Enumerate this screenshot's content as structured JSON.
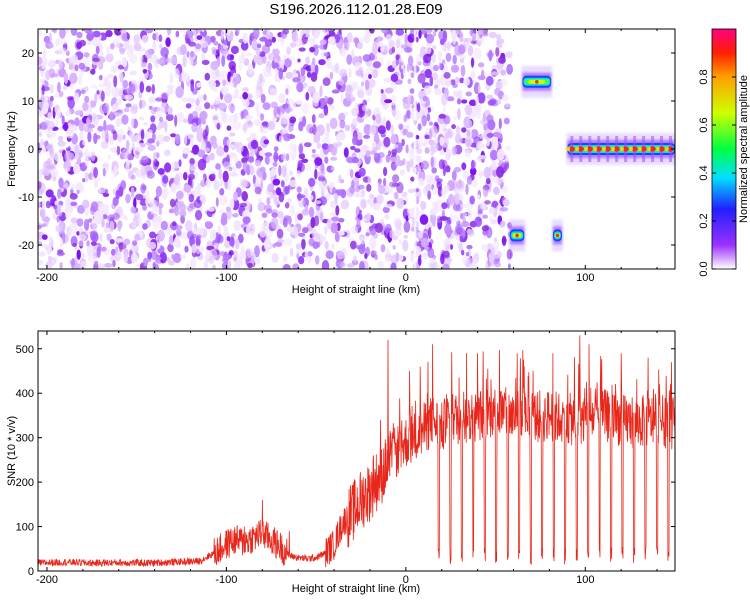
{
  "title": "S196.2026.112.01.28.E09",
  "chart_data": [
    {
      "type": "heatmap",
      "xlabel": "Height of straight line (km)",
      "ylabel": "Frequency (Hz)",
      "xlim": [
        -205,
        150
      ],
      "ylim": [
        -25,
        25
      ],
      "xticks": [
        -200,
        -100,
        0,
        100
      ],
      "xtick_labels": [
        "-200",
        "-100",
        "0",
        "100"
      ],
      "yticks": [
        -20,
        -10,
        0,
        10,
        20
      ],
      "ytick_labels": [
        "-20",
        "-10",
        "0",
        "10",
        "20"
      ],
      "noise_region": {
        "x_range": [
          -205,
          58
        ],
        "y_range": [
          -25,
          25
        ],
        "description": "broadband noise, low normalized amplitude"
      },
      "features": [
        {
          "x_range": [
            58,
            66
          ],
          "y": -18,
          "amplitude": 0.5
        },
        {
          "x_range": [
            65,
            81
          ],
          "y": 14,
          "amplitude": 0.5
        },
        {
          "x_range": [
            82,
            87
          ],
          "y": -18,
          "amplitude": 0.5
        },
        {
          "x_range": [
            90,
            150
          ],
          "y": 0,
          "amplitude": 0.95
        }
      ],
      "colorbar": {
        "label": "Normalized spectral amplitude",
        "range": [
          0,
          1
        ],
        "ticks": [
          0.0,
          0.2,
          0.4,
          0.6,
          0.8
        ],
        "tick_labels": [
          "0.0",
          "0.2",
          "0.4",
          "0.6",
          "0.8"
        ]
      }
    },
    {
      "type": "line",
      "xlabel": "Height of straight line (km)",
      "ylabel": "SNR (10 * v/v)",
      "xlim": [
        -205,
        150
      ],
      "ylim": [
        0,
        540
      ],
      "xticks": [
        -200,
        -100,
        0,
        100
      ],
      "xtick_labels": [
        "-200",
        "-100",
        "0",
        "100"
      ],
      "yticks": [
        0,
        100,
        200,
        300,
        400,
        500
      ],
      "ytick_labels": [
        "0",
        "100",
        "200",
        "300",
        "400",
        "500"
      ],
      "series": [
        {
          "name": "SNR",
          "color": "#e8261a",
          "x": [
            -205,
            -190,
            -175,
            -160,
            -145,
            -130,
            -115,
            -105,
            -100,
            -95,
            -90,
            -85,
            -80,
            -75,
            -70,
            -65,
            -60,
            -55,
            -50,
            -45,
            -40,
            -35,
            -30,
            -25,
            -20,
            -15,
            -10,
            -5,
            0,
            5,
            10,
            15,
            20,
            25,
            30,
            40,
            50,
            60,
            70,
            80,
            90,
            100,
            110,
            120,
            130,
            140,
            150
          ],
          "values": [
            18,
            20,
            18,
            19,
            18,
            20,
            22,
            45,
            60,
            70,
            65,
            75,
            85,
            70,
            55,
            35,
            30,
            28,
            30,
            40,
            60,
            110,
            130,
            160,
            180,
            210,
            240,
            270,
            290,
            300,
            320,
            340,
            320,
            350,
            340,
            350,
            360,
            350,
            345,
            350,
            340,
            345,
            350,
            340,
            335,
            340,
            330
          ]
        }
      ],
      "peaks": [
        {
          "x": -98,
          "y": 90
        },
        {
          "x": -90,
          "y": 100
        },
        {
          "x": -80,
          "y": 160
        },
        {
          "x": -65,
          "y": 90
        },
        {
          "x": -30,
          "y": 170
        },
        {
          "x": -18,
          "y": 260
        },
        {
          "x": -14,
          "y": 340
        },
        {
          "x": -10,
          "y": 520
        },
        {
          "x": -2,
          "y": 280
        },
        {
          "x": 2,
          "y": 450
        },
        {
          "x": 8,
          "y": 460
        },
        {
          "x": 15,
          "y": 510
        },
        {
          "x": 40,
          "y": 490
        },
        {
          "x": 62,
          "y": 490
        },
        {
          "x": 82,
          "y": 490
        },
        {
          "x": 97,
          "y": 530
        },
        {
          "x": 102,
          "y": 510
        },
        {
          "x": 120,
          "y": 490
        },
        {
          "x": 135,
          "y": 480
        },
        {
          "x": 148,
          "y": 470
        }
      ],
      "dips": {
        "x_range": [
          18,
          150
        ],
        "period": 6.4,
        "min_value": 15
      }
    }
  ]
}
